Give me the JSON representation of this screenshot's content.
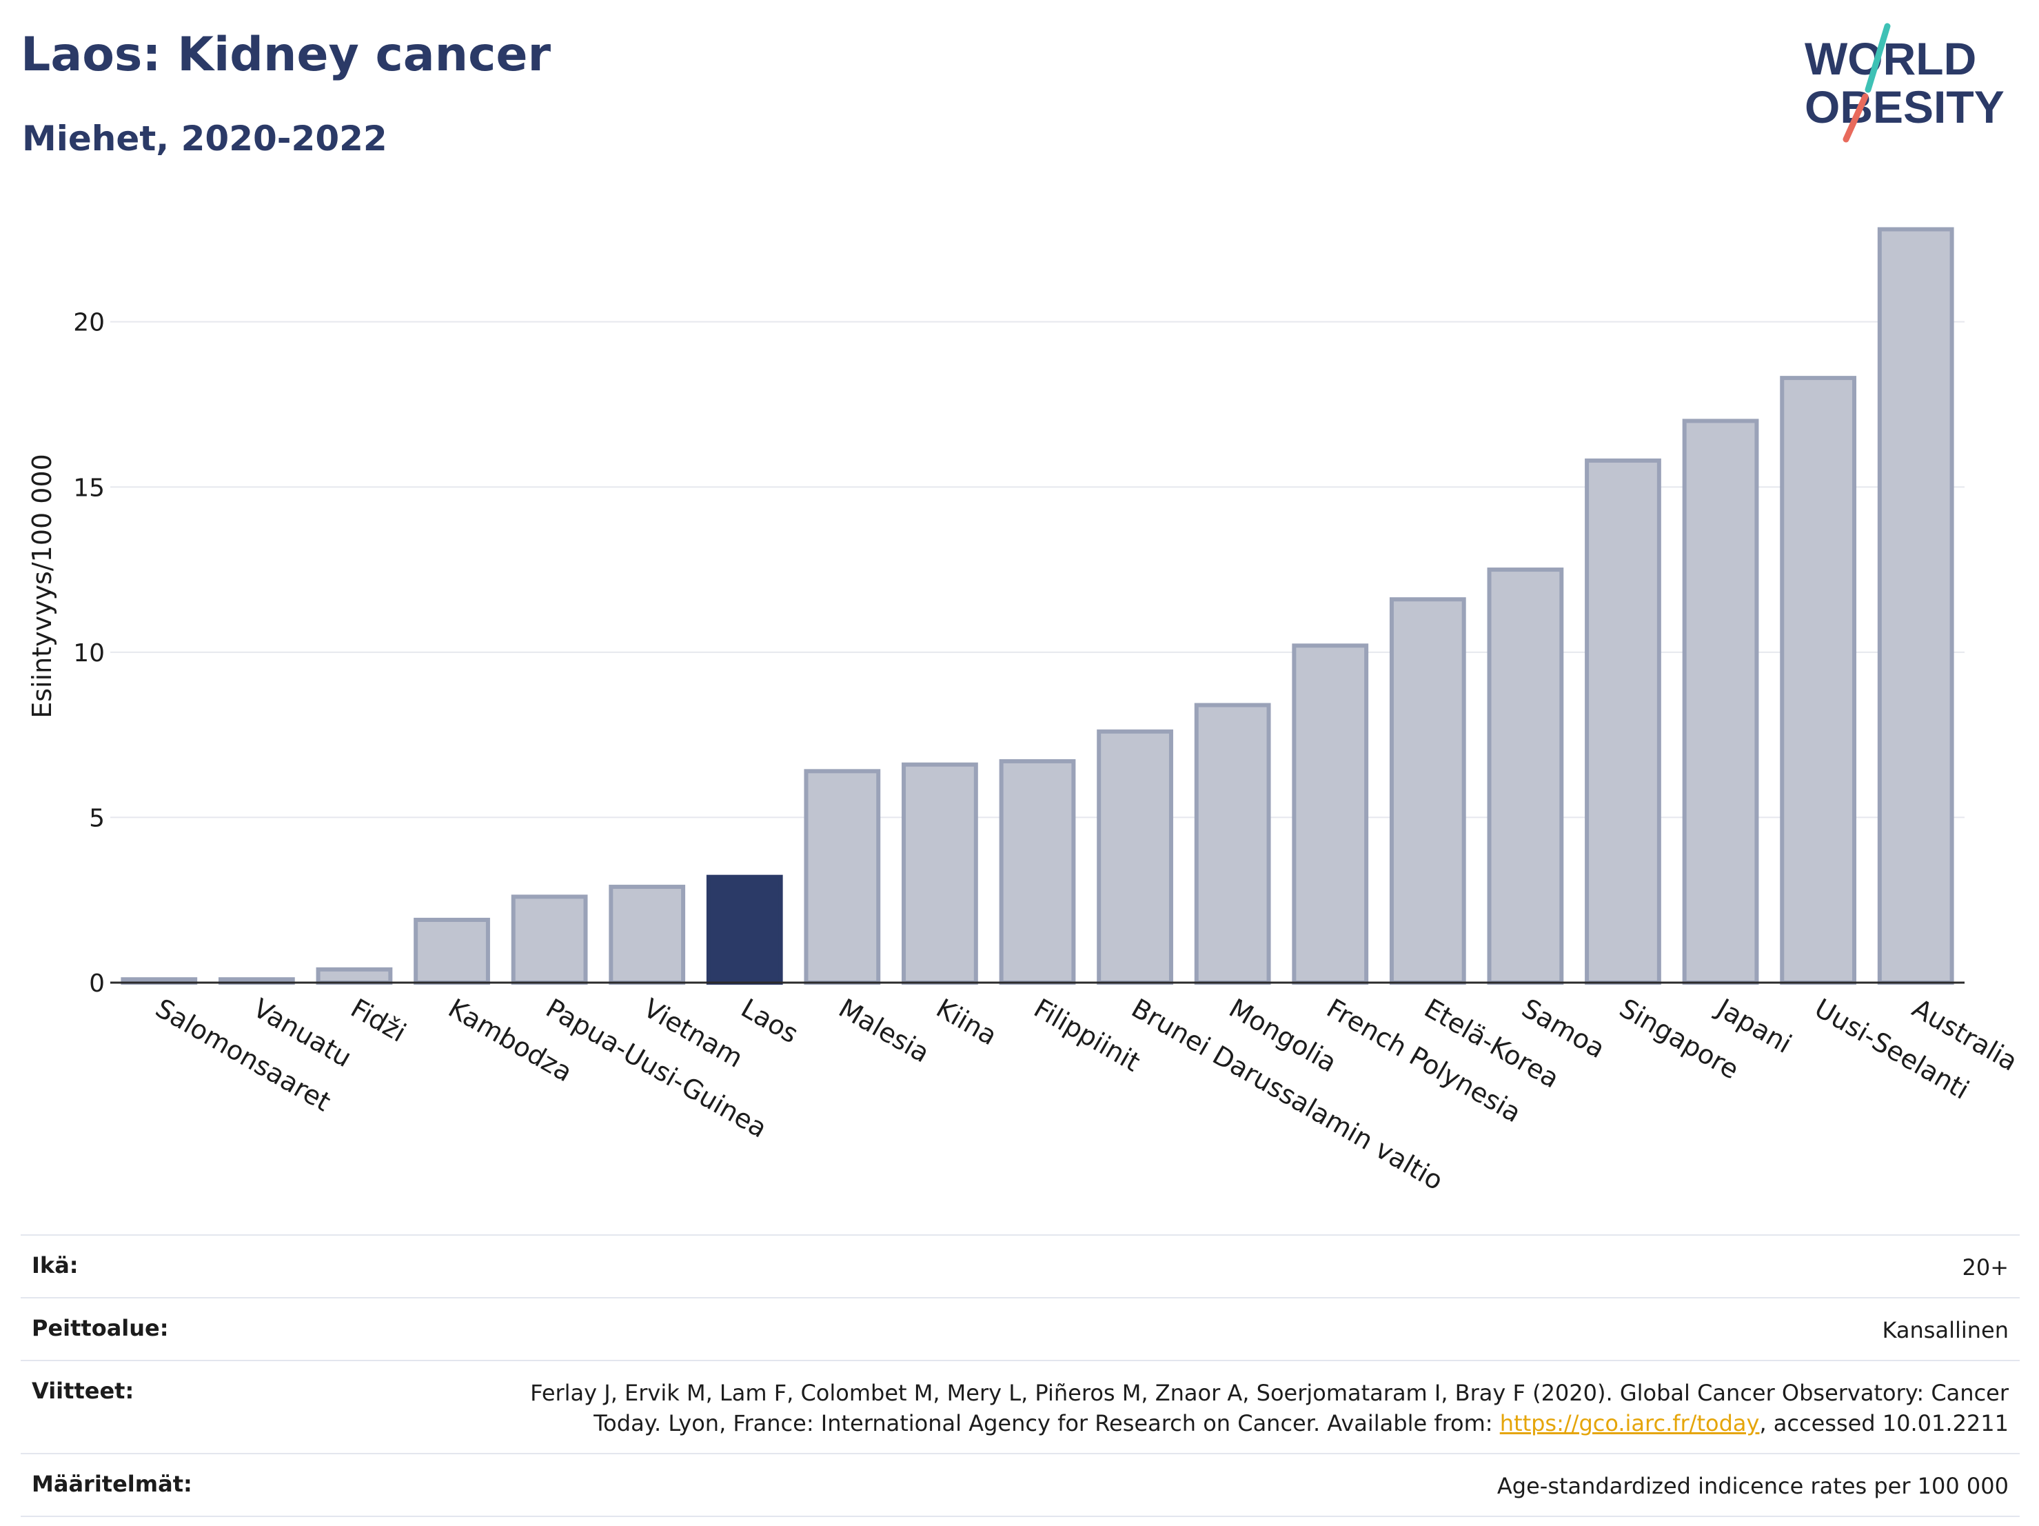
{
  "title": "Laos: Kidney cancer",
  "subtitle": "Miehet, 2020-2022",
  "logo": {
    "line1": "WORLD",
    "line2": "OBESITY"
  },
  "colors": {
    "highlight": "#2b3a67",
    "bar": "#c0c4d0",
    "bar_edge": "#9aa2b8",
    "title": "#2b3a67",
    "link": "#e5a50a"
  },
  "chart_data": {
    "type": "bar",
    "ylabel": "Esiintyvyys/100 000",
    "ylim": [
      0,
      24
    ],
    "yticks": [
      0,
      5,
      10,
      15,
      20
    ],
    "grid": true,
    "highlight": "Laos",
    "categories": [
      "Salomonsaaret",
      "Vanuatu",
      "Fidži",
      "Kambodza",
      "Papua-Uusi-Guinea",
      "Vietnam",
      "Laos",
      "Malesia",
      "Kiina",
      "Filippiinit",
      "Brunei Darussalamin valtio",
      "Mongolia",
      "French Polynesia",
      "Etelä-Korea",
      "Samoa",
      "Singapore",
      "Japani",
      "Uusi-Seelanti",
      "Australia"
    ],
    "values": [
      0.1,
      0.1,
      0.4,
      1.9,
      2.6,
      2.9,
      3.2,
      6.4,
      6.6,
      6.7,
      7.6,
      8.4,
      10.2,
      11.6,
      12.5,
      15.8,
      17.0,
      18.3,
      22.8
    ]
  },
  "info": [
    {
      "key": "Ikä:",
      "value": "20+"
    },
    {
      "key": "Peittoalue:",
      "value": "Kansallinen"
    },
    {
      "key": "Viitteet:",
      "value": "Ferlay J, Ervik M, Lam F, Colombet M, Mery L, Piñeros M, Znaor A, Soerjomataram I, Bray F (2020). Global Cancer Observatory: Cancer Today. Lyon, France: International Agency for Research on Cancer. Available from: ",
      "link": "https://gco.iarc.fr/today",
      "suffix": ", accessed 10.01.2211"
    },
    {
      "key": "Määritelmät:",
      "value": "Age-standardized indicence rates per 100 000"
    }
  ]
}
